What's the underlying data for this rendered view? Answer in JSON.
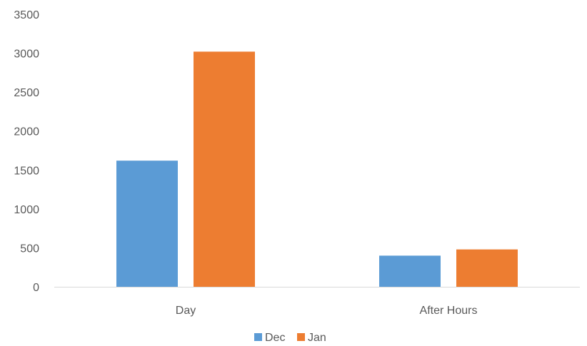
{
  "chart_data": {
    "type": "bar",
    "categories": [
      "Day",
      "After Hours"
    ],
    "series": [
      {
        "name": "Dec",
        "values": [
          1620,
          400
        ],
        "color": "#5B9BD5"
      },
      {
        "name": "Jan",
        "values": [
          3020,
          480
        ],
        "color": "#ED7D31"
      }
    ],
    "title": "",
    "xlabel": "",
    "ylabel": "",
    "ylim": [
      0,
      3500
    ],
    "yticks": [
      "0",
      "500",
      "1000",
      "1500",
      "2000",
      "2500",
      "3000",
      "3500"
    ],
    "grid": false,
    "legend_position": "bottom",
    "axis_color": "#D9D9D9"
  }
}
